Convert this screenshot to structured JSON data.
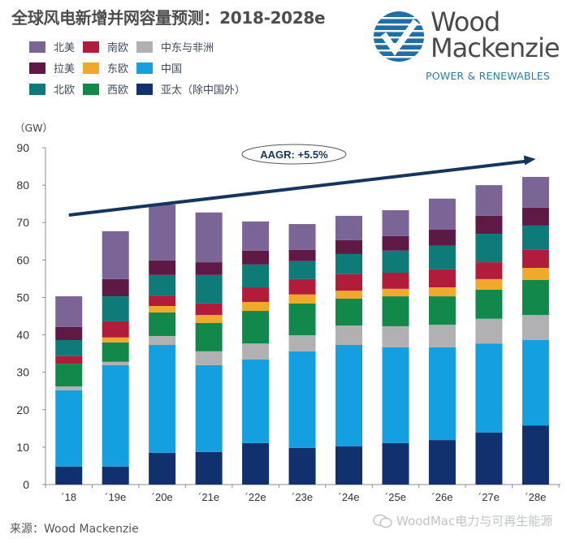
{
  "header": {
    "title": "全球风电新增并网容量预测：2018-2028e"
  },
  "logo": {
    "line1": "Wood",
    "line2": "Mackenzie",
    "subtitle": "POWER & RENEWABLES",
    "icon": "wood-mackenzie-globe-icon"
  },
  "unit_label": "（GW）",
  "source_label": "来源：Wood Mackenzie",
  "watermark": {
    "icon": "wechat-icon",
    "text": "WoodMac电力与可再生能源"
  },
  "annotation": {
    "label": "AAGR: +5.5%",
    "arrow_from": [
      "'18",
      72
    ],
    "arrow_to": [
      "'28e",
      87
    ]
  },
  "colors": {
    "北美": "#7b6496",
    "拉美": "#5e1a45",
    "北欧": "#0f7b78",
    "南欧": "#b01c3a",
    "东欧": "#f0a92a",
    "西欧": "#12884a",
    "中东与非洲": "#b1b1b3",
    "中国": "#14a0e0",
    "亚太（除中国外）": "#10306e",
    "arrow": "#14365e"
  },
  "legend": [
    {
      "label": "北美",
      "key": "北美"
    },
    {
      "label": "南欧",
      "key": "南欧"
    },
    {
      "label": "中东与非洲",
      "key": "中东与非洲"
    },
    {
      "label": "拉美",
      "key": "拉美"
    },
    {
      "label": "东欧",
      "key": "东欧"
    },
    {
      "label": "中国",
      "key": "中国"
    },
    {
      "label": "北欧",
      "key": "北欧"
    },
    {
      "label": "西欧",
      "key": "西欧"
    },
    {
      "label": "亚太（除中国外）",
      "key": "亚太（除中国外）"
    }
  ],
  "chart_data": {
    "type": "bar",
    "stacked": true,
    "title": "全球风电新增并网容量预测：2018-2028e",
    "xlabel": "",
    "ylabel": "（GW）",
    "ylim": [
      0,
      90
    ],
    "yticks": [
      0,
      10,
      20,
      30,
      40,
      50,
      60,
      70,
      80,
      90
    ],
    "grid": false,
    "legend_position": "top-left",
    "categories": [
      "´18",
      "´19e",
      "´20e",
      "´21e",
      "´22e",
      "´23e",
      "´24e",
      "´25e",
      "´26e",
      "´27e",
      "´28e"
    ],
    "series": [
      {
        "name": "亚太（除中国外）",
        "values": [
          4.8,
          4.8,
          8.5,
          8.7,
          11.1,
          9.8,
          10.2,
          11.1,
          11.9,
          13.9,
          15.8
        ]
      },
      {
        "name": "中国",
        "values": [
          20.4,
          27.1,
          28.8,
          23.2,
          22.3,
          25.8,
          27.1,
          25.6,
          24.8,
          23.8,
          22.8
        ]
      },
      {
        "name": "中东与非洲",
        "values": [
          1.0,
          0.9,
          2.4,
          3.7,
          4.3,
          4.3,
          5.2,
          5.6,
          6.0,
          6.6,
          6.7
        ]
      },
      {
        "name": "西欧",
        "values": [
          6.1,
          5.2,
          6.3,
          7.6,
          8.7,
          8.5,
          7.2,
          8.0,
          7.6,
          7.8,
          9.4
        ]
      },
      {
        "name": "东欧",
        "values": [
          0.0,
          1.3,
          1.7,
          2.1,
          2.4,
          2.4,
          2.1,
          2.0,
          2.4,
          2.8,
          3.2
        ]
      },
      {
        "name": "南欧",
        "values": [
          2.0,
          4.3,
          2.8,
          3.1,
          3.9,
          4.1,
          4.4,
          4.3,
          4.8,
          4.5,
          4.8
        ]
      },
      {
        "name": "北欧",
        "values": [
          4.3,
          6.7,
          5.5,
          7.6,
          6.1,
          4.8,
          5.4,
          5.9,
          6.3,
          7.6,
          6.5
        ]
      },
      {
        "name": "拉美",
        "values": [
          3.5,
          4.6,
          3.9,
          3.4,
          3.7,
          3.0,
          3.7,
          3.9,
          4.3,
          4.8,
          4.8
        ]
      },
      {
        "name": "北美",
        "values": [
          8.2,
          12.8,
          14.9,
          13.3,
          7.8,
          6.9,
          6.5,
          6.9,
          8.3,
          8.2,
          8.2
        ]
      }
    ],
    "annotations": [
      "AAGR: +5.5%"
    ]
  }
}
